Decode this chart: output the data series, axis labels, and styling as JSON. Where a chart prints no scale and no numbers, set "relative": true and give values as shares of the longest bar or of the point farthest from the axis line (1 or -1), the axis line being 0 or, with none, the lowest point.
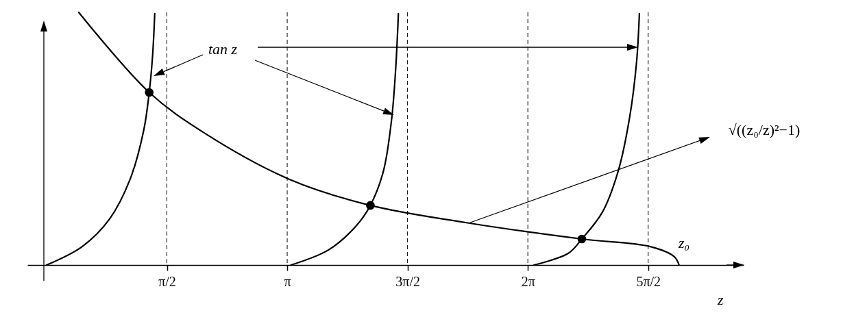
{
  "chart_data": {
    "type": "line",
    "relative": true,
    "xlabel": "z",
    "grid": false,
    "line_style": "solid",
    "xlim": [
      -0.25,
      9.1
    ],
    "xticks": [
      {
        "value": 1.5708,
        "label": "π/2"
      },
      {
        "value": 3.1416,
        "label": "π"
      },
      {
        "value": 4.7124,
        "label": "3π/2"
      },
      {
        "value": 6.2832,
        "label": "2π"
      },
      {
        "value": 7.854,
        "label": "5π/2"
      }
    ],
    "ref_lines": [
      {
        "axis": "x",
        "value": 1.5708,
        "color": "#000000",
        "line_style": "dashed"
      },
      {
        "axis": "x",
        "value": 3.1416,
        "color": "#000000",
        "line_style": "dashed"
      },
      {
        "axis": "x",
        "value": 4.7124,
        "color": "#000000",
        "line_style": "dashed"
      },
      {
        "axis": "x",
        "value": 6.2832,
        "color": "#000000",
        "line_style": "dashed"
      },
      {
        "axis": "x",
        "value": 7.854,
        "color": "#000000",
        "line_style": "dashed"
      }
    ],
    "annotations": [
      "tan z",
      "√((z₀/z)²−1)",
      "z₀"
    ],
    "series": [
      {
        "color": "#000000",
        "x": [
          0,
          0.465,
          0.822,
          1.09,
          1.269,
          1.34,
          1.385,
          1.412
        ],
        "values": [
          0,
          0.073,
          0.182,
          0.339,
          0.534,
          0.683,
          0.832,
          0.995
        ]
      },
      {
        "color": "#000000",
        "x": [
          3.19,
          3.682,
          4.039,
          4.227,
          4.397,
          4.504,
          4.558,
          4.593
        ],
        "values": [
          0,
          0.06,
          0.154,
          0.236,
          0.371,
          0.575,
          0.778,
          0.995
        ]
      },
      {
        "color": "#000000",
        "x": [
          6.363,
          6.81,
          6.988,
          7.256,
          7.462,
          7.614,
          7.703,
          7.739
        ],
        "values": [
          0,
          0.046,
          0.103,
          0.209,
          0.371,
          0.588,
          0.805,
          0.995
        ]
      },
      {
        "color": "#000000",
        "x": [
          0.42,
          1.34,
          2.073,
          3.172,
          4.227,
          5.469,
          6.988,
          7.882,
          8.195,
          8.257
        ],
        "values": [
          1,
          0.683,
          0.52,
          0.339,
          0.236,
          0.168,
          0.103,
          0.073,
          0.033,
          0
        ]
      },
      {
        "type": "scatter",
        "marker": "circle",
        "color": "#000000",
        "x": [
          1.34,
          4.227,
          6.988
        ],
        "values": [
          0.683,
          0.236,
          0.103
        ]
      }
    ]
  }
}
